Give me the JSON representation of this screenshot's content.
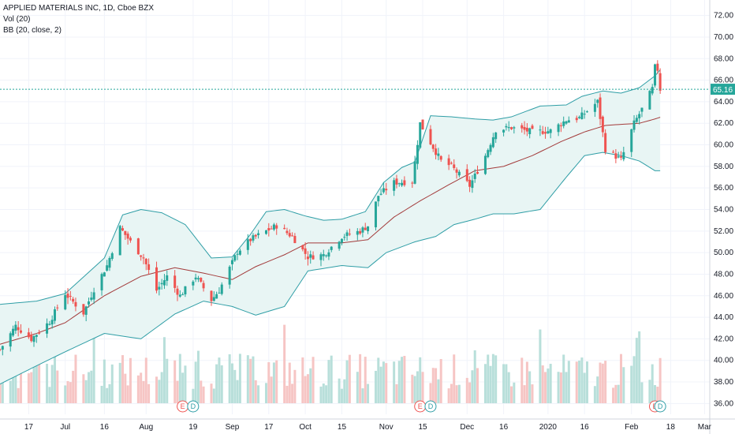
{
  "legend": {
    "title": "APPLIED MATERIALS INC, 1D, Cboe BZX",
    "vol": "Vol (20)",
    "bb": "BB (20, close, 2)"
  },
  "price_label": "65.16",
  "colors": {
    "up": "#26a69a",
    "down": "#ef5350",
    "band": "#2f9ea6",
    "basis": "#a33b3b",
    "band_fill": "#e8f5f4",
    "vol_up": "#b8dfda",
    "vol_down": "#f6c5c4",
    "price_line": "#26a69a"
  },
  "events": [
    {
      "date": "2019-08-15",
      "letter": "E"
    },
    {
      "date": "2019-08-19",
      "letter": "D"
    },
    {
      "date": "2019-11-14",
      "letter": "E"
    },
    {
      "date": "2019-11-18",
      "letter": "D"
    },
    {
      "date": "2020-02-12",
      "letter": "E"
    },
    {
      "date": "2020-02-14",
      "letter": "D"
    }
  ],
  "chart_data": {
    "type": "candlestick",
    "y_ticks": [
      "36.00",
      "38.00",
      "40.00",
      "42.00",
      "44.00",
      "46.00",
      "48.00",
      "50.00",
      "52.00",
      "54.00",
      "56.00",
      "58.00",
      "60.00",
      "62.00",
      "64.00",
      "66.00",
      "68.00",
      "70.00",
      "72.00"
    ],
    "ylim": [
      35,
      73
    ],
    "x_ticks": [
      {
        "date": "2019-06-17",
        "label": "17"
      },
      {
        "date": "2019-07-01",
        "label": "Jul"
      },
      {
        "date": "2019-07-16",
        "label": "16"
      },
      {
        "date": "2019-08-01",
        "label": "Aug"
      },
      {
        "date": "2019-08-19",
        "label": "19"
      },
      {
        "date": "2019-09-03",
        "label": "Sep"
      },
      {
        "date": "2019-09-17",
        "label": "17"
      },
      {
        "date": "2019-10-01",
        "label": "Oct"
      },
      {
        "date": "2019-10-15",
        "label": "15"
      },
      {
        "date": "2019-11-01",
        "label": "Nov"
      },
      {
        "date": "2019-11-15",
        "label": "15"
      },
      {
        "date": "2019-12-02",
        "label": "Dec"
      },
      {
        "date": "2019-12-16",
        "label": "16"
      },
      {
        "date": "2020-01-02",
        "label": "2020"
      },
      {
        "date": "2020-01-16",
        "label": "16"
      },
      {
        "date": "2020-02-03",
        "label": "Feb"
      },
      {
        "date": "2020-02-18",
        "label": "18"
      },
      {
        "date": "2020-03-02",
        "label": "Mar"
      }
    ],
    "xlim": [
      "2019-06-06",
      "2020-03-04"
    ],
    "last_close": 65.16,
    "close_path": [
      [
        "2019-06-06",
        41.0
      ],
      [
        "2019-06-12",
        43.2
      ],
      [
        "2019-06-18",
        42.0
      ],
      [
        "2019-06-25",
        43.6
      ],
      [
        "2019-07-01",
        46.2
      ],
      [
        "2019-07-08",
        44.4
      ],
      [
        "2019-07-12",
        46.6
      ],
      [
        "2019-07-17",
        48.8
      ],
      [
        "2019-07-22",
        52.3
      ],
      [
        "2019-07-26",
        51.0
      ],
      [
        "2019-07-31",
        49.5
      ],
      [
        "2019-08-05",
        46.5
      ],
      [
        "2019-08-09",
        47.8
      ],
      [
        "2019-08-14",
        46.0
      ],
      [
        "2019-08-20",
        47.8
      ],
      [
        "2019-08-26",
        45.6
      ],
      [
        "2019-08-29",
        46.5
      ],
      [
        "2019-09-05",
        50.1
      ],
      [
        "2019-09-10",
        51.2
      ],
      [
        "2019-09-16",
        52.0
      ],
      [
        "2019-09-20",
        52.5
      ],
      [
        "2019-09-26",
        51.5
      ],
      [
        "2019-10-02",
        49.6
      ],
      [
        "2019-10-08",
        49.8
      ],
      [
        "2019-10-15",
        51.5
      ],
      [
        "2019-10-22",
        52.0
      ],
      [
        "2019-10-25",
        52.5
      ],
      [
        "2019-10-29",
        55.3
      ],
      [
        "2019-11-04",
        56.5
      ],
      [
        "2019-11-11",
        56.6
      ],
      [
        "2019-11-14",
        62.0
      ],
      [
        "2019-11-18",
        60.2
      ],
      [
        "2019-11-22",
        58.5
      ],
      [
        "2019-11-26",
        58.0
      ],
      [
        "2019-12-03",
        56.2
      ],
      [
        "2019-12-09",
        59.0
      ],
      [
        "2019-12-13",
        61.4
      ],
      [
        "2019-12-19",
        61.6
      ],
      [
        "2019-12-27",
        61.2
      ],
      [
        "2020-01-03",
        61.3
      ],
      [
        "2020-01-09",
        62.3
      ],
      [
        "2020-01-14",
        62.5
      ],
      [
        "2020-01-21",
        64.0
      ],
      [
        "2020-01-24",
        59.6
      ],
      [
        "2020-01-30",
        58.6
      ],
      [
        "2020-02-04",
        62.0
      ],
      [
        "2020-02-07",
        63.3
      ],
      [
        "2020-02-11",
        65.2
      ],
      [
        "2020-02-12",
        67.2
      ],
      [
        "2020-02-13",
        67.0
      ],
      [
        "2020-02-14",
        65.16
      ]
    ],
    "upper_band": [
      [
        "2019-06-06",
        45.2
      ],
      [
        "2019-06-20",
        45.5
      ],
      [
        "2019-07-01",
        46.2
      ],
      [
        "2019-07-16",
        49.5
      ],
      [
        "2019-07-23",
        53.5
      ],
      [
        "2019-07-30",
        54.0
      ],
      [
        "2019-08-07",
        53.7
      ],
      [
        "2019-08-16",
        52.6
      ],
      [
        "2019-08-26",
        49.5
      ],
      [
        "2019-09-03",
        49.6
      ],
      [
        "2019-09-10",
        51.7
      ],
      [
        "2019-09-16",
        53.8
      ],
      [
        "2019-09-23",
        54.0
      ],
      [
        "2019-10-01",
        53.4
      ],
      [
        "2019-10-08",
        53.0
      ],
      [
        "2019-10-15",
        53.1
      ],
      [
        "2019-10-24",
        53.8
      ],
      [
        "2019-10-31",
        56.5
      ],
      [
        "2019-11-07",
        57.9
      ],
      [
        "2019-11-12",
        58.4
      ],
      [
        "2019-11-18",
        62.7
      ],
      [
        "2019-11-26",
        62.6
      ],
      [
        "2019-12-05",
        62.4
      ],
      [
        "2019-12-12",
        62.3
      ],
      [
        "2019-12-19",
        62.6
      ],
      [
        "2019-12-30",
        63.6
      ],
      [
        "2020-01-09",
        63.7
      ],
      [
        "2020-01-15",
        64.5
      ],
      [
        "2020-01-23",
        65.0
      ],
      [
        "2020-01-30",
        64.8
      ],
      [
        "2020-02-06",
        65.3
      ],
      [
        "2020-02-12",
        66.4
      ],
      [
        "2020-02-17",
        67.8
      ]
    ],
    "basis": [
      [
        "2019-06-06",
        41.5
      ],
      [
        "2019-06-20",
        42.5
      ],
      [
        "2019-07-01",
        43.5
      ],
      [
        "2019-07-16",
        46.0
      ],
      [
        "2019-07-30",
        47.8
      ],
      [
        "2019-08-12",
        48.6
      ],
      [
        "2019-08-23",
        48.1
      ],
      [
        "2019-09-03",
        47.5
      ],
      [
        "2019-09-12",
        48.7
      ],
      [
        "2019-09-23",
        49.8
      ],
      [
        "2019-10-02",
        50.9
      ],
      [
        "2019-10-15",
        50.9
      ],
      [
        "2019-10-25",
        51.2
      ],
      [
        "2019-11-04",
        53.3
      ],
      [
        "2019-11-14",
        54.8
      ],
      [
        "2019-11-25",
        56.3
      ],
      [
        "2019-12-05",
        57.6
      ],
      [
        "2019-12-16",
        58.0
      ],
      [
        "2019-12-27",
        59.0
      ],
      [
        "2020-01-07",
        60.3
      ],
      [
        "2020-01-16",
        61.2
      ],
      [
        "2020-01-24",
        61.8
      ],
      [
        "2020-01-30",
        61.9
      ],
      [
        "2020-02-06",
        62.0
      ],
      [
        "2020-02-12",
        62.4
      ],
      [
        "2020-02-17",
        62.8
      ]
    ],
    "lower_band": [
      [
        "2019-06-06",
        37.8
      ],
      [
        "2019-06-20",
        39.5
      ],
      [
        "2019-07-01",
        40.8
      ],
      [
        "2019-07-16",
        42.5
      ],
      [
        "2019-07-30",
        42.0
      ],
      [
        "2019-08-12",
        44.3
      ],
      [
        "2019-08-23",
        45.5
      ],
      [
        "2019-09-03",
        45.0
      ],
      [
        "2019-09-12",
        44.2
      ],
      [
        "2019-09-23",
        45.0
      ],
      [
        "2019-10-02",
        48.3
      ],
      [
        "2019-10-15",
        48.8
      ],
      [
        "2019-10-25",
        48.6
      ],
      [
        "2019-11-01",
        50.0
      ],
      [
        "2019-11-12",
        51.0
      ],
      [
        "2019-11-20",
        51.5
      ],
      [
        "2019-11-27",
        52.6
      ],
      [
        "2019-12-05",
        53.1
      ],
      [
        "2019-12-12",
        53.6
      ],
      [
        "2019-12-20",
        53.6
      ],
      [
        "2019-12-30",
        54.0
      ],
      [
        "2020-01-09",
        57.0
      ],
      [
        "2020-01-16",
        59.0
      ],
      [
        "2020-01-23",
        59.3
      ],
      [
        "2020-01-30",
        59.0
      ],
      [
        "2020-02-06",
        58.5
      ],
      [
        "2020-02-12",
        57.6
      ],
      [
        "2020-02-17",
        57.6
      ]
    ]
  }
}
